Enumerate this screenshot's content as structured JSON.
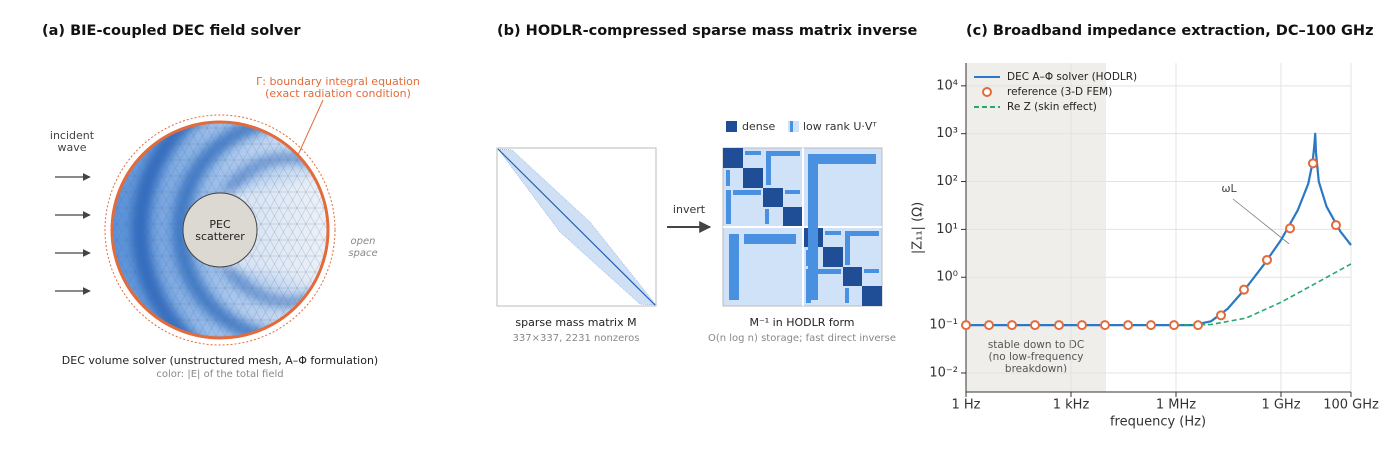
{
  "panel_a": {
    "title": "(a)  BIE-coupled DEC field solver",
    "gamma_label": [
      "Γ: boundary integral equation",
      "(exact radiation condition)"
    ],
    "incident": [
      "incident",
      "wave"
    ],
    "pec": [
      "PEC",
      "scatterer"
    ],
    "open": [
      "open",
      "space"
    ],
    "caption": "DEC volume solver (unstructured mesh, A–Φ formulation)",
    "subcaption": "color: |E| of the total field"
  },
  "panel_b": {
    "title": "(b)  HODLR-compressed sparse mass matrix inverse",
    "legend": [
      "dense",
      "low rank  U·Vᵀ"
    ],
    "arrow_label": "invert",
    "left_caption": "sparse mass matrix  M",
    "left_subcaption": "337×337, 2231 nonzeros",
    "right_caption": "M⁻¹ in HODLR form",
    "right_subcaption": "O(n log n) storage; fast direct inverse"
  },
  "chart_data": {
    "type": "line",
    "title": "(c)  Broadband impedance extraction, DC–100 GHz",
    "xlabel": "frequency (Hz)",
    "ylabel": "|Z₁₁|  (Ω)",
    "xscale": "log",
    "yscale": "log",
    "xlim": [
      1,
      100000000000
    ],
    "ylim": [
      0.004,
      30000
    ],
    "xticks": [
      {
        "value": 1,
        "label": "1 Hz"
      },
      {
        "value": 1000,
        "label": "1 kHz"
      },
      {
        "value": 1000000,
        "label": "1 MHz"
      },
      {
        "value": 1000000000,
        "label": "1 GHz"
      },
      {
        "value": 100000000000,
        "label": "100 GHz"
      }
    ],
    "yticks": [
      {
        "value": 0.01,
        "label": "10⁻²"
      },
      {
        "value": 0.1,
        "label": "10⁻¹"
      },
      {
        "value": 1,
        "label": "10⁰"
      },
      {
        "value": 10,
        "label": "10¹"
      },
      {
        "value": 100,
        "label": "10²"
      },
      {
        "value": 1000,
        "label": "10³"
      },
      {
        "value": 10000,
        "label": "10⁴"
      }
    ],
    "grid": true,
    "legend": "upper left",
    "span": {
      "x": [
        1,
        10000
      ],
      "color": "#efeeeb",
      "text": [
        "stable down to DC",
        "(no low-frequency",
        "breakdown)"
      ]
    },
    "annotation": {
      "text": "ωL",
      "x": 1000000000,
      "y": 5
    },
    "series": [
      {
        "name": "DEC A–Φ solver (HODLR)",
        "kind": "line",
        "color": "#2b78c5",
        "x": [
          1,
          1000000,
          3000000,
          10000000,
          30000000,
          100000000,
          300000000,
          1000000000,
          3000000000,
          6000000000,
          8000000000,
          9000000000,
          9500000000,
          10000000000,
          12000000000,
          20000000000,
          50000000000,
          100000000000
        ],
        "values": [
          0.1,
          0.1,
          0.1,
          0.12,
          0.22,
          0.6,
          1.7,
          6,
          25,
          90,
          250,
          600,
          1000,
          400,
          100,
          30,
          9,
          4.7
        ]
      },
      {
        "name": "reference (3-D FEM)",
        "kind": "scatter",
        "color": "#e36a3a",
        "x": [
          1,
          4.54,
          20.6,
          93.5,
          454,
          2060,
          9350,
          42600,
          193000,
          877000,
          4260000,
          19300000,
          87700000,
          398000000,
          1810000000,
          8200000000,
          37200000000
        ],
        "values": [
          0.1,
          0.1,
          0.1,
          0.1,
          0.1,
          0.1,
          0.1,
          0.1,
          0.1,
          0.1,
          0.1,
          0.16,
          0.55,
          2.3,
          10.5,
          240,
          12.3
        ]
      },
      {
        "name": "Re Z  (skin effect)",
        "kind": "dashed",
        "color": "#27a86e",
        "x": [
          1000000,
          10000000,
          100000000,
          1000000000,
          10000000000,
          100000000000
        ],
        "values": [
          0.1,
          0.103,
          0.14,
          0.3,
          0.75,
          1.9
        ]
      }
    ]
  }
}
